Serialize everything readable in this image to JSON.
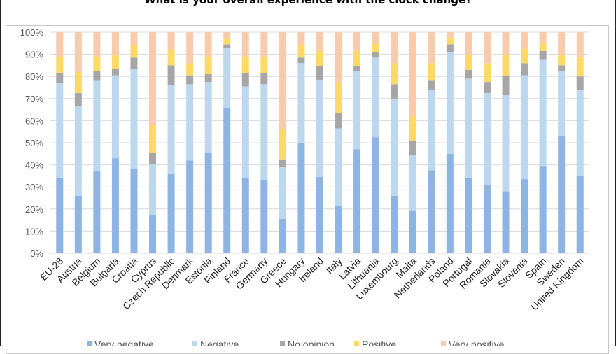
{
  "chart_data": {
    "type": "bar",
    "stacked": true,
    "percent": true,
    "title": "What is your overall experience with the clock change?",
    "xlabel": "",
    "ylabel": "",
    "ylim": [
      0,
      100
    ],
    "yticks": [
      "0%",
      "10%",
      "20%",
      "30%",
      "40%",
      "50%",
      "60%",
      "70%",
      "80%",
      "90%",
      "100%"
    ],
    "grid": true,
    "legend_position": "bottom",
    "categories": [
      "EU-28",
      "Austria",
      "Belgium",
      "Bulgaria",
      "Croatia",
      "Cyprus",
      "Czech Republic",
      "Denmark",
      "Estonia",
      "Finland",
      "France",
      "Germany",
      "Greece",
      "Hungary",
      "Ireland",
      "Italy",
      "Latvia",
      "Lithuania",
      "Luxembourg",
      "Malta",
      "Netherlands",
      "Poland",
      "Portugal",
      "Romania",
      "Slovakia",
      "Slovenia",
      "Spain",
      "Sweden",
      "United Kingdom"
    ],
    "series": [
      {
        "name": "Very negative",
        "color": "#8db4e2",
        "values": [
          34,
          26,
          37,
          43,
          38,
          17.5,
          36,
          42,
          45.5,
          65.5,
          34,
          33,
          15.5,
          50,
          34.5,
          21.5,
          47,
          52.5,
          26,
          19,
          37.5,
          45,
          34,
          31,
          28,
          33.5,
          39.5,
          53,
          35
        ]
      },
      {
        "name": "Negative",
        "color": "#bdd7ee",
        "values": [
          43,
          40.5,
          41,
          37.5,
          45.5,
          23,
          40,
          34.5,
          32,
          27.5,
          41.5,
          43.5,
          23.5,
          36,
          44,
          35,
          35.5,
          36,
          44,
          25.5,
          36.5,
          46,
          45,
          41.5,
          43.5,
          47,
          48,
          29.5,
          39
        ]
      },
      {
        "name": "No opinion",
        "color": "#a6a6a6",
        "values": [
          4.5,
          6,
          4.5,
          3,
          5,
          5,
          9,
          4,
          3.5,
          1.5,
          6,
          5,
          3.5,
          2.5,
          6,
          7,
          2,
          2.5,
          6.5,
          6.5,
          4,
          3.5,
          4,
          5,
          9,
          5.5,
          4,
          2.5,
          6
        ]
      },
      {
        "name": "Positive",
        "color": "#ffd966",
        "values": [
          7.5,
          9.5,
          6.5,
          6,
          5.5,
          12.5,
          7,
          5.5,
          8,
          2.5,
          7.5,
          7.5,
          13.5,
          5.5,
          6.5,
          14,
          7,
          3.5,
          9.5,
          11,
          8,
          3,
          7,
          8.5,
          9.5,
          6.5,
          3.5,
          4.5,
          8.5
        ]
      },
      {
        "name": "Very positive",
        "color": "#f8cbad",
        "values": [
          11,
          18,
          11,
          10.5,
          6,
          42,
          8,
          14,
          11,
          3,
          11,
          11,
          44,
          6,
          9,
          22.5,
          8.5,
          5.5,
          14,
          38,
          14,
          2.5,
          10,
          14,
          10,
          7.5,
          5,
          10.5,
          11.5
        ]
      }
    ]
  }
}
